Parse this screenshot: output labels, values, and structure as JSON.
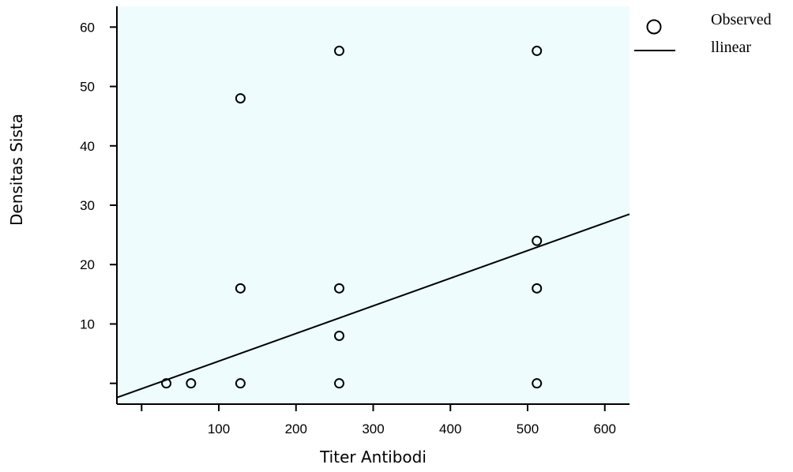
{
  "chart_data": {
    "type": "scatter",
    "xlabel": "Titer Antibodi",
    "ylabel": "Densitas Sista",
    "xlim": [
      -32,
      632
    ],
    "ylim": [
      -3.5,
      63.5
    ],
    "x_ticks": [
      100,
      200,
      300,
      400,
      500,
      600
    ],
    "x_ticks_unlabeled": [
      0
    ],
    "y_ticks": [
      10,
      20,
      30,
      40,
      50,
      60
    ],
    "y_ticks_unlabeled": [
      0
    ],
    "plot_background": "#eefcfd",
    "grid": false,
    "legend_position": "top-right, outside plot",
    "series": [
      {
        "name": "Observed",
        "marker": "open-circle",
        "points": [
          {
            "x": 32,
            "y": 0
          },
          {
            "x": 64,
            "y": 0
          },
          {
            "x": 128,
            "y": 0
          },
          {
            "x": 256,
            "y": 0
          },
          {
            "x": 512,
            "y": 0
          },
          {
            "x": 256,
            "y": 8
          },
          {
            "x": 128,
            "y": 16
          },
          {
            "x": 256,
            "y": 16
          },
          {
            "x": 512,
            "y": 16
          },
          {
            "x": 512,
            "y": 24
          },
          {
            "x": 128,
            "y": 48
          },
          {
            "x": 256,
            "y": 56
          },
          {
            "x": 512,
            "y": 56
          }
        ]
      },
      {
        "name": "llinear",
        "type": "line",
        "points": [
          {
            "x": -32,
            "y": -2.4
          },
          {
            "x": 632,
            "y": 28.5
          }
        ]
      }
    ]
  }
}
